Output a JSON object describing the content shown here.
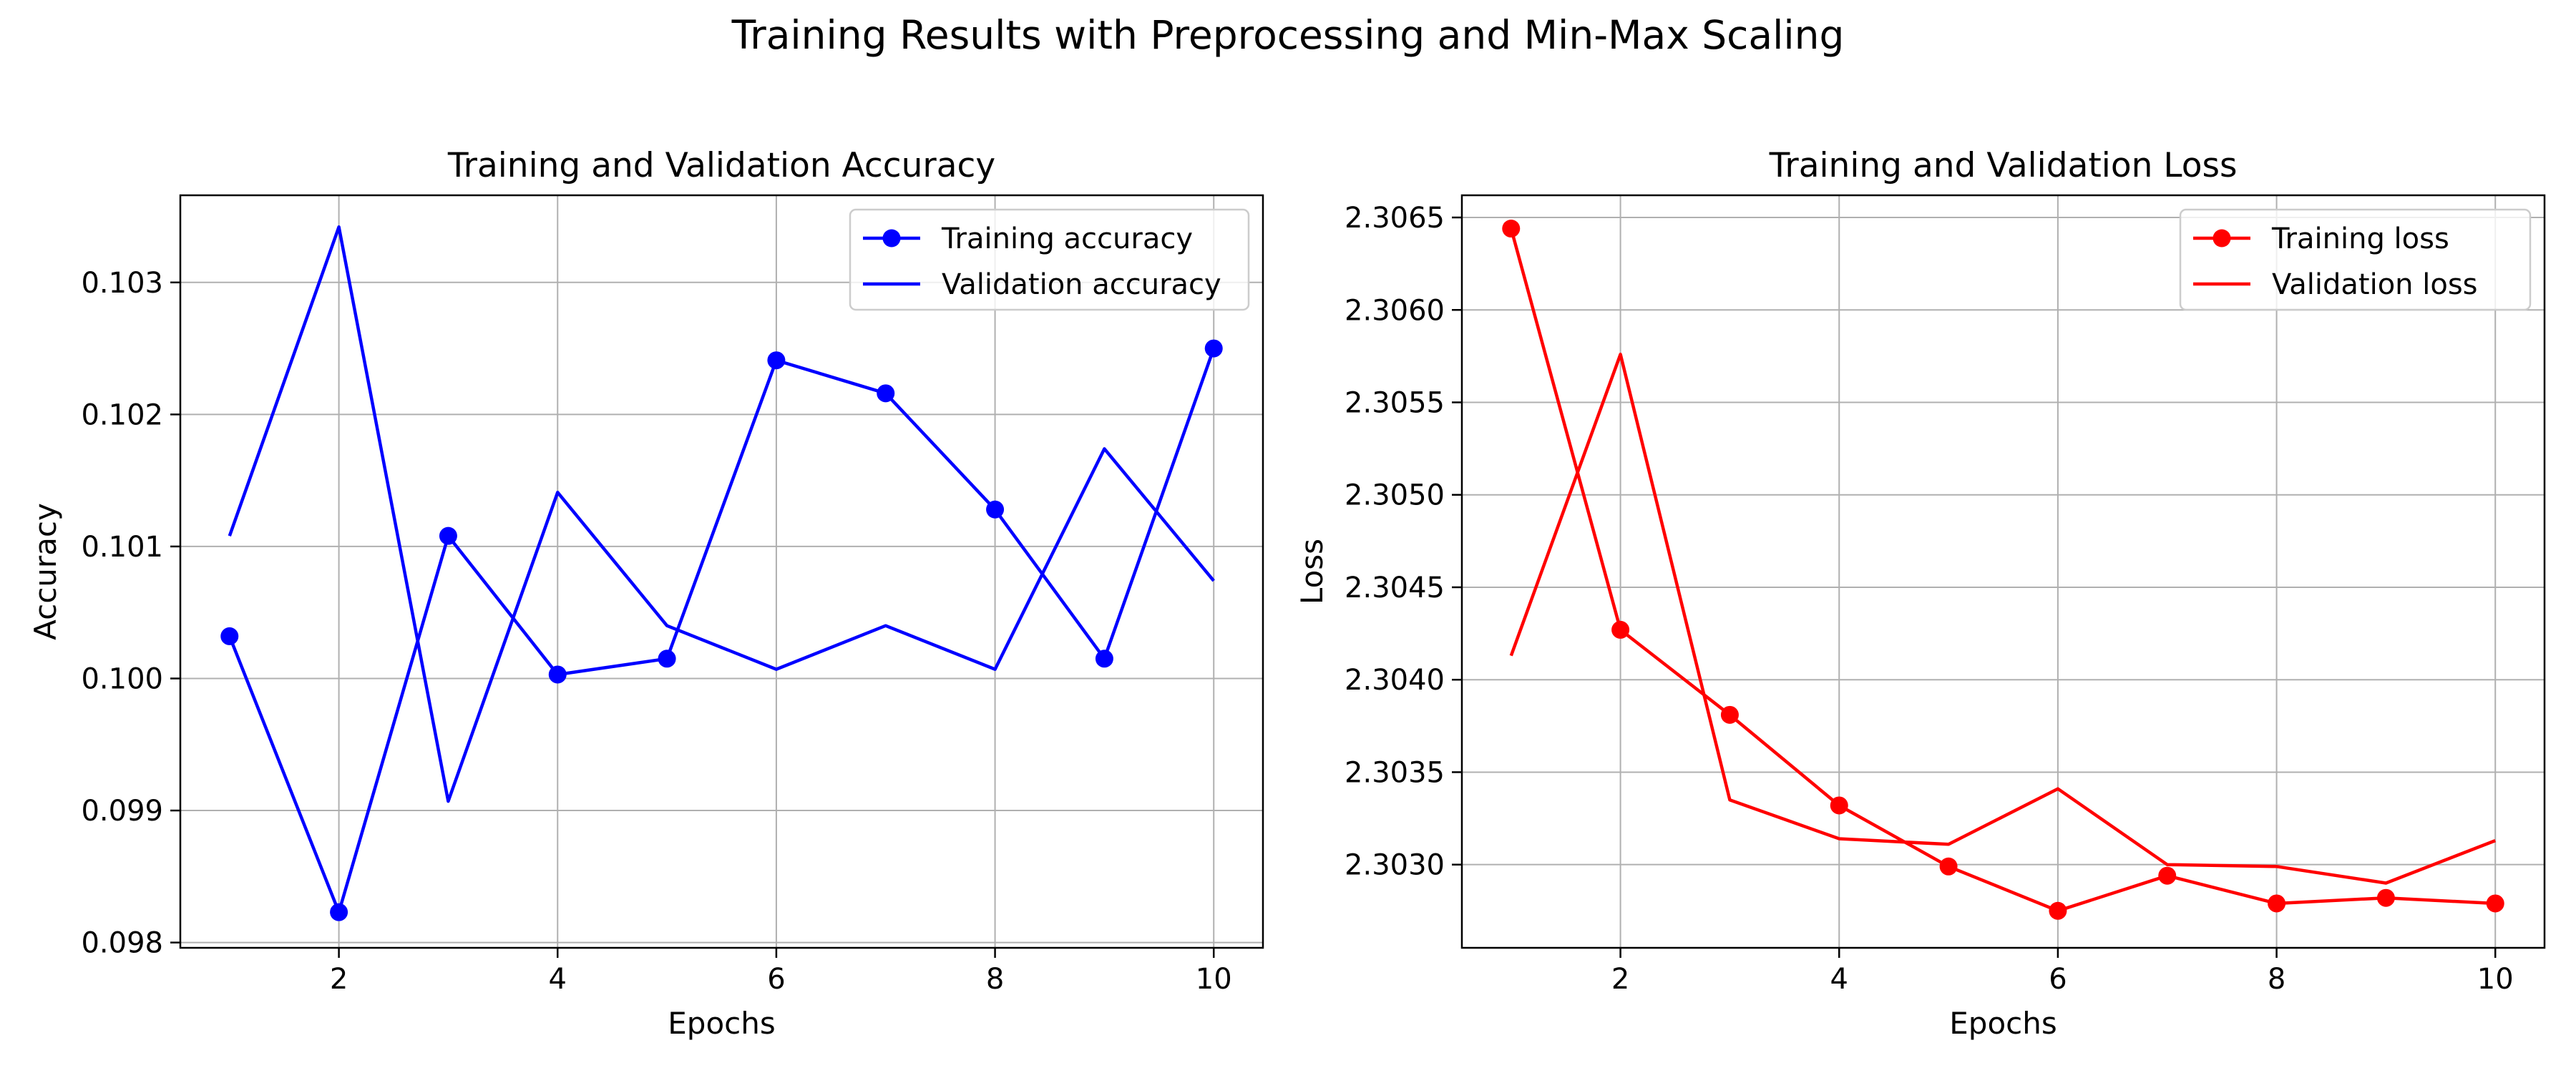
{
  "figure": {
    "title": "Training Results with Preprocessing and Min-Max Scaling"
  },
  "chart_data": [
    {
      "type": "line",
      "title": "Training and Validation Accuracy",
      "xlabel": "Epochs",
      "ylabel": "Accuracy",
      "x": [
        1,
        2,
        3,
        4,
        5,
        6,
        7,
        8,
        9,
        10
      ],
      "xlim": [
        0.55,
        10.45
      ],
      "ylim": [
        0.09796,
        0.10366
      ],
      "xticks": [
        2,
        4,
        6,
        8,
        10
      ],
      "xtick_labels": [
        "2",
        "4",
        "6",
        "8",
        "10"
      ],
      "yticks": [
        0.098,
        0.099,
        0.1,
        0.101,
        0.102,
        0.103
      ],
      "ytick_labels": [
        "0.098",
        "0.099",
        "0.100",
        "0.101",
        "0.102",
        "0.103"
      ],
      "grid": true,
      "legend_position": "upper right",
      "series": [
        {
          "name": "Training accuracy",
          "color": "#0000ff",
          "marker": "circle",
          "values": [
            0.10032,
            0.09823,
            0.10108,
            0.10003,
            0.10015,
            0.10241,
            0.10216,
            0.10128,
            0.10015,
            0.1025
          ]
        },
        {
          "name": "Validation accuracy",
          "color": "#0000ff",
          "marker": "none",
          "values": [
            0.10108,
            0.10342,
            0.09907,
            0.10141,
            0.1004,
            0.10007,
            0.1004,
            0.10007,
            0.10174,
            0.10074
          ]
        }
      ]
    },
    {
      "type": "line",
      "title": "Training and Validation Loss",
      "xlabel": "Epochs",
      "ylabel": "Loss",
      "x": [
        1,
        2,
        3,
        4,
        5,
        6,
        7,
        8,
        9,
        10
      ],
      "xlim": [
        0.55,
        10.45
      ],
      "ylim": [
        2.30255,
        2.30662
      ],
      "xticks": [
        2,
        4,
        6,
        8,
        10
      ],
      "xtick_labels": [
        "2",
        "4",
        "6",
        "8",
        "10"
      ],
      "yticks": [
        2.303,
        2.3035,
        2.304,
        2.3045,
        2.305,
        2.3055,
        2.306,
        2.3065
      ],
      "ytick_labels": [
        "2.3030",
        "2.3035",
        "2.3040",
        "2.3045",
        "2.3050",
        "2.3055",
        "2.3060",
        "2.3065"
      ],
      "grid": true,
      "legend_position": "upper right",
      "series": [
        {
          "name": "Training loss",
          "color": "#ff0000",
          "marker": "circle",
          "values": [
            2.30644,
            2.30427,
            2.30381,
            2.30332,
            2.30299,
            2.30275,
            2.30294,
            2.30279,
            2.30282,
            2.30279
          ]
        },
        {
          "name": "Validation loss",
          "color": "#ff0000",
          "marker": "none",
          "values": [
            2.30413,
            2.30576,
            2.30335,
            2.30314,
            2.30311,
            2.30341,
            2.303,
            2.30299,
            2.3029,
            2.30313
          ]
        }
      ]
    }
  ]
}
